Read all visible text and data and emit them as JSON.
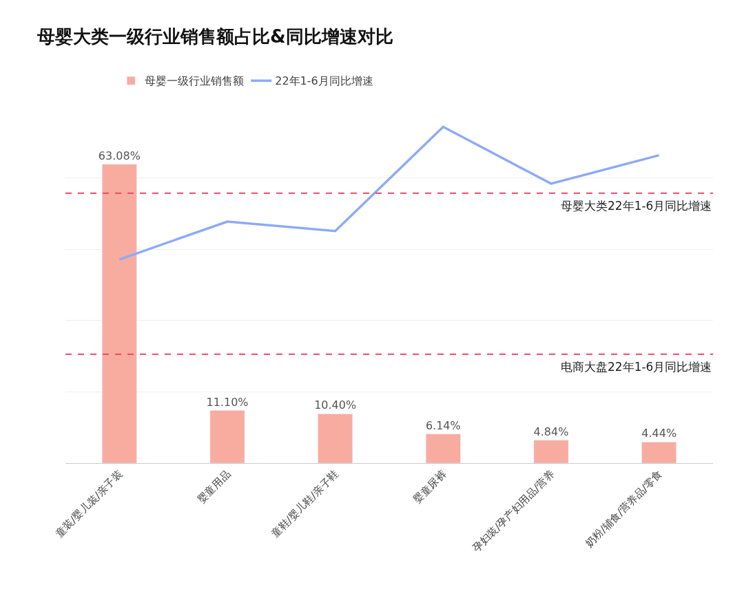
{
  "chart_data": {
    "type": "bar",
    "title": "母婴大类一级行业销售额占比&同比增速对比",
    "categories": [
      "童装/婴儿装/亲子装",
      "婴童用品",
      "童鞋/婴儿鞋/亲子鞋",
      "婴童尿裤",
      "孕妇装/孕产妇用品/营养",
      "奶粉/辅食/营养品/零食"
    ],
    "series": [
      {
        "name": "母婴一级行业销售额",
        "color": "#f8aca0",
        "values": [
          63.08,
          11.1,
          10.4,
          6.14,
          4.84,
          4.44
        ],
        "value_labels": [
          "63.08%",
          "11.10%",
          "10.40%",
          "6.14%",
          "4.84%",
          "4.44%"
        ]
      },
      {
        "name": "22年1-6月同比增速",
        "type": "line",
        "color": "#8eaaf7",
        "values": [
          43,
          51,
          49,
          71,
          59,
          65
        ]
      }
    ],
    "ref_lines": [
      {
        "axis": "y",
        "value": 57,
        "label": "母婴大类22年1-6月同比增速",
        "color": "#ee4466",
        "line_style": "dashed"
      },
      {
        "axis": "y",
        "value": 23,
        "label": "电商大盘22年1-6月同比增速",
        "color": "#ee4466",
        "line_style": "dashed"
      }
    ],
    "grid": "y",
    "legend": "top left",
    "marker": "none",
    "line_style": "solid"
  }
}
